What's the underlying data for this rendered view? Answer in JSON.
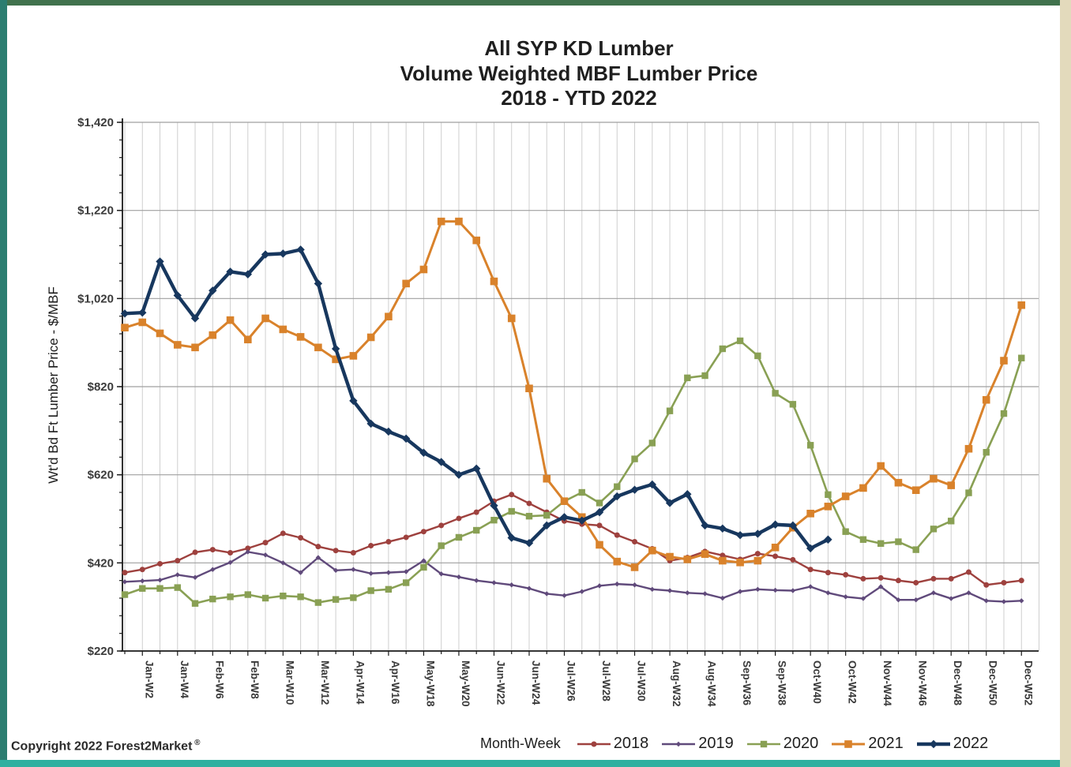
{
  "title": {
    "line1": "All SYP KD Lumber",
    "line2": "Volume Weighted MBF Lumber Price",
    "line3": "2018 - YTD 2022"
  },
  "copyright": "Copyright 2022 Forest2Market ®",
  "chart_data": {
    "type": "line",
    "title": "All SYP KD Lumber Volume Weighted MBF Lumber Price 2018 - YTD 2022",
    "xlabel": "Month-Week",
    "ylabel": "Wt'd Bd Ft Lumber Price - $/MBF",
    "ylim": [
      220,
      1420
    ],
    "ytick_values": [
      220,
      420,
      620,
      820,
      1020,
      1220,
      1420
    ],
    "ytick_labels": [
      "$220",
      "$420",
      "$620",
      "$820",
      "$1,020",
      "$1,220",
      "$1,420"
    ],
    "y_minor_step": 40,
    "weeks_per_year": 52,
    "xtick_labels": [
      "Jan-W2",
      "Jan-W4",
      "Feb-W6",
      "Feb-W8",
      "Mar-W10",
      "Mar-W12",
      "Apr-W14",
      "Apr-W16",
      "May-W18",
      "May-W20",
      "Jun-W22",
      "Jun-W24",
      "Jul-W26",
      "Jul-W28",
      "Jul-W30",
      "Aug-W32",
      "Aug-W34",
      "Sep-W36",
      "Sep-W38",
      "Oct-W40",
      "Oct-W42",
      "Nov-W44",
      "Nov-W46",
      "Dec-W48",
      "Dec-W50",
      "Dec-W52"
    ],
    "grid": true,
    "legend_position": "bottom",
    "colors": {
      "grid_vertical": "#cfcfcf",
      "grid_horizontal": "#9f9f9f",
      "axis": "#1a1a1a",
      "tick_text": "#3b3b3b"
    },
    "series": [
      {
        "name": "2018",
        "color": "#9E413E",
        "marker": "circle",
        "marker_size": 3.5,
        "line_width": 2.4,
        "values": [
          398,
          405,
          418,
          425,
          444,
          450,
          443,
          453,
          466,
          487,
          477,
          457,
          448,
          443,
          459,
          468,
          478,
          491,
          505,
          521,
          535,
          560,
          575,
          555,
          535,
          515,
          508,
          505,
          483,
          468,
          452,
          425,
          432,
          446,
          437,
          428,
          441,
          435,
          427,
          405,
          398,
          393,
          384,
          386,
          380,
          375,
          384,
          384,
          399,
          370,
          375,
          380
        ]
      },
      {
        "name": "2019",
        "color": "#604A7B",
        "marker": "diamond",
        "marker_size": 3.2,
        "line_width": 2.4,
        "values": [
          377,
          379,
          381,
          393,
          387,
          405,
          421,
          445,
          438,
          420,
          398,
          432,
          403,
          405,
          396,
          398,
          400,
          425,
          395,
          388,
          380,
          375,
          370,
          362,
          350,
          346,
          355,
          368,
          372,
          370,
          360,
          357,
          352,
          350,
          340,
          355,
          360,
          358,
          357,
          366,
          352,
          343,
          339,
          366,
          336,
          336,
          352,
          339,
          352,
          334,
          332,
          334
        ]
      },
      {
        "name": "2020",
        "color": "#89A054",
        "marker": "square",
        "marker_size": 4.2,
        "line_width": 2.6,
        "values": [
          348,
          362,
          362,
          364,
          328,
          338,
          343,
          348,
          340,
          345,
          343,
          330,
          337,
          341,
          357,
          360,
          375,
          410,
          459,
          478,
          494,
          517,
          537,
          526,
          528,
          560,
          580,
          556,
          593,
          656,
          692,
          765,
          840,
          845,
          906,
          924,
          890,
          805,
          780,
          687,
          575,
          491,
          473,
          464,
          468,
          450,
          497,
          515,
          579,
          671,
          759,
          885
        ]
      },
      {
        "name": "2021",
        "color": "#D9822B",
        "marker": "square",
        "marker_size": 4.8,
        "line_width": 3.0,
        "values": [
          954,
          966,
          941,
          915,
          909,
          937,
          971,
          927,
          975,
          950,
          933,
          909,
          882,
          890,
          932,
          979,
          1054,
          1086,
          1195,
          1195,
          1152,
          1059,
          975,
          816,
          611,
          560,
          524,
          461,
          423,
          410,
          448,
          434,
          428,
          440,
          425,
          421,
          425,
          455,
          500,
          532,
          548,
          571,
          590,
          640,
          602,
          585,
          611,
          596,
          679,
          790,
          879,
          1005
        ]
      },
      {
        "name": "2022",
        "color": "#17375E",
        "marker": "diamond",
        "marker_size": 5.2,
        "line_width": 4.4,
        "values": [
          986,
          988,
          1104,
          1027,
          975,
          1038,
          1081,
          1075,
          1120,
          1122,
          1131,
          1054,
          906,
          788,
          736,
          718,
          702,
          670,
          649,
          620,
          634,
          550,
          477,
          465,
          505,
          524,
          516,
          535,
          571,
          586,
          598,
          556,
          576,
          505,
          498,
          483,
          486,
          507,
          505,
          453,
          473
        ]
      }
    ]
  }
}
